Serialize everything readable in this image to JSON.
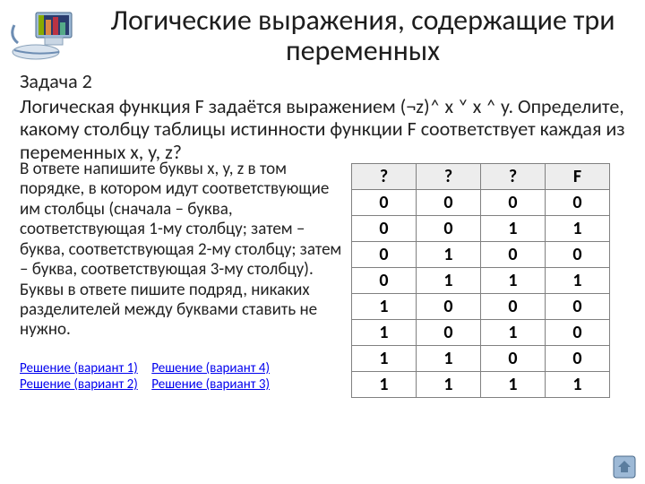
{
  "title": "Логические выражения, содержащие три переменных",
  "task": {
    "label": "Задача 2",
    "body": "Логическая функция F задаётся выражением (¬z)˄ x ˅ x ˄ y. Определите, какому столбцу таблицы истинности функции F соответствует каждая из переменных  x, y, z?"
  },
  "answer_text": "В ответе напишите буквы x, y, z в том порядке, в котором идут соответствующие им столбцы (сначала – буква, соответствующая 1-му столбцу; затем – буква, соответствующая 2-му столбцу; затем – буква, соответствующая 3-му столбцу). Буквы в ответе пишите подряд, никаких разделителей между буквами ставить не нужно.",
  "links": [
    "Решение (вариант 1)",
    "Решение (вариант 4)",
    "Решение (вариант 2)",
    "Решение (вариант 3)"
  ],
  "truth_table": {
    "headers": [
      "?",
      "?",
      "?",
      "F"
    ],
    "rows": [
      [
        "0",
        "0",
        "0",
        "0"
      ],
      [
        "0",
        "0",
        "1",
        "1"
      ],
      [
        "0",
        "1",
        "0",
        "0"
      ],
      [
        "0",
        "1",
        "1",
        "1"
      ],
      [
        "1",
        "0",
        "0",
        "0"
      ],
      [
        "1",
        "0",
        "1",
        "0"
      ],
      [
        "1",
        "1",
        "0",
        "0"
      ],
      [
        "1",
        "1",
        "1",
        "1"
      ]
    ]
  },
  "colors": {
    "link": "#0000ee",
    "table_border": "#808080",
    "table_header_bg": "#ededed",
    "text": "#222222",
    "background": "#ffffff",
    "nav_fill": "#5b7d9e"
  }
}
